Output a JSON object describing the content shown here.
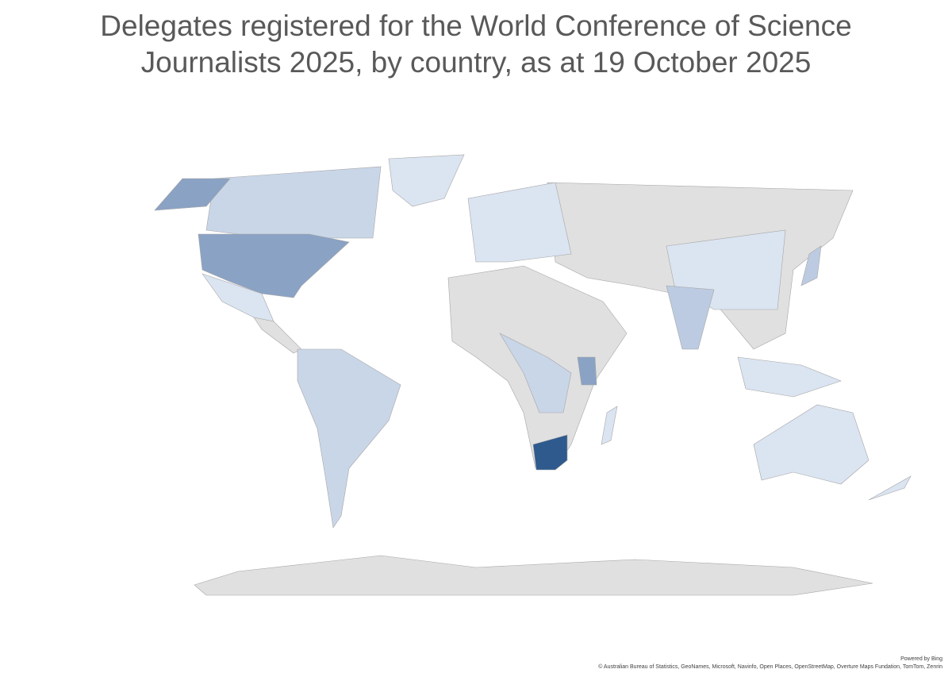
{
  "header": {
    "title": "Delegates registered for the World Conference of Science Journalists 2025, by country, as at 19 October 2025"
  },
  "footer": {
    "powered_by": "Powered by Bing",
    "attribution": "© Australian Bureau of Statistics, GeoNames, Microsoft, Navinfo, Open Places, OpenStreetMap, Overture Maps Fundation, TomTom, Zenrin"
  }
}
